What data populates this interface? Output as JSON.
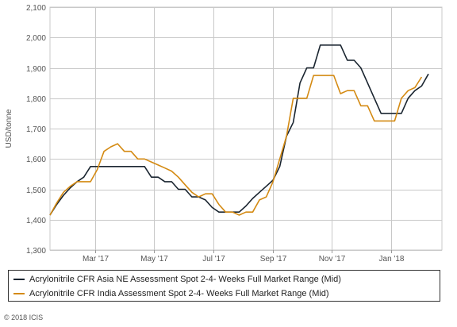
{
  "chart_data": {
    "type": "line",
    "title": "",
    "xlabel": "",
    "ylabel": "USD/tonne",
    "ylim": [
      1300,
      2100
    ],
    "yticks": [
      1300,
      1400,
      1500,
      1600,
      1700,
      1800,
      1900,
      2000,
      2100
    ],
    "ytick_labels": [
      "1,300",
      "1,400",
      "1,500",
      "1,600",
      "1,700",
      "1,800",
      "1,900",
      "2,000",
      "2,100"
    ],
    "xlim": [
      "2017-01-13",
      "2018-02-23"
    ],
    "xticks": [
      {
        "date": "2017-03-01",
        "label": "Mar '17"
      },
      {
        "date": "2017-05-01",
        "label": "May '17"
      },
      {
        "date": "2017-07-01",
        "label": "Jul '17"
      },
      {
        "date": "2017-09-01",
        "label": "Sep '17"
      },
      {
        "date": "2017-11-01",
        "label": "Nov '17"
      },
      {
        "date": "2018-01-01",
        "label": "Jan '18"
      }
    ],
    "grid": true,
    "legend_position": "bottom",
    "series": [
      {
        "name": "Acrylonitrile CFR Asia NE Assessment Spot 2-4- Weeks Full Market Range (Mid)",
        "color": "#1a2530",
        "points": [
          [
            "2017-01-13",
            1415
          ],
          [
            "2017-01-20",
            1450
          ],
          [
            "2017-01-27",
            1480
          ],
          [
            "2017-02-03",
            1505
          ],
          [
            "2017-02-10",
            1525
          ],
          [
            "2017-02-17",
            1540
          ],
          [
            "2017-02-24",
            1575
          ],
          [
            "2017-03-03",
            1575
          ],
          [
            "2017-03-10",
            1575
          ],
          [
            "2017-03-17",
            1575
          ],
          [
            "2017-03-24",
            1575
          ],
          [
            "2017-03-31",
            1575
          ],
          [
            "2017-04-07",
            1575
          ],
          [
            "2017-04-14",
            1575
          ],
          [
            "2017-04-21",
            1575
          ],
          [
            "2017-04-28",
            1540
          ],
          [
            "2017-05-05",
            1540
          ],
          [
            "2017-05-12",
            1525
          ],
          [
            "2017-05-19",
            1525
          ],
          [
            "2017-05-26",
            1500
          ],
          [
            "2017-06-02",
            1500
          ],
          [
            "2017-06-09",
            1475
          ],
          [
            "2017-06-16",
            1475
          ],
          [
            "2017-06-23",
            1465
          ],
          [
            "2017-06-30",
            1440
          ],
          [
            "2017-07-07",
            1425
          ],
          [
            "2017-07-14",
            1425
          ],
          [
            "2017-07-21",
            1425
          ],
          [
            "2017-07-28",
            1425
          ],
          [
            "2017-08-04",
            1445
          ],
          [
            "2017-08-11",
            1470
          ],
          [
            "2017-08-18",
            1490
          ],
          [
            "2017-08-25",
            1510
          ],
          [
            "2017-09-01",
            1530
          ],
          [
            "2017-09-08",
            1575
          ],
          [
            "2017-09-15",
            1675
          ],
          [
            "2017-09-22",
            1720
          ],
          [
            "2017-09-29",
            1850
          ],
          [
            "2017-10-06",
            1900
          ],
          [
            "2017-10-13",
            1900
          ],
          [
            "2017-10-20",
            1975
          ],
          [
            "2017-10-27",
            1975
          ],
          [
            "2017-11-03",
            1975
          ],
          [
            "2017-11-10",
            1975
          ],
          [
            "2017-11-17",
            1925
          ],
          [
            "2017-11-24",
            1925
          ],
          [
            "2017-12-01",
            1900
          ],
          [
            "2017-12-08",
            1850
          ],
          [
            "2017-12-15",
            1800
          ],
          [
            "2017-12-22",
            1750
          ],
          [
            "2017-12-29",
            1750
          ],
          [
            "2018-01-05",
            1750
          ],
          [
            "2018-01-12",
            1750
          ],
          [
            "2018-01-19",
            1800
          ],
          [
            "2018-01-26",
            1825
          ],
          [
            "2018-02-02",
            1840
          ],
          [
            "2018-02-09",
            1880
          ]
        ]
      },
      {
        "name": "Acrylonitrile CFR India Assessment Spot 2-4- Weeks Full Market Range (Mid)",
        "color": "#d48a12",
        "points": [
          [
            "2017-01-13",
            1415
          ],
          [
            "2017-01-20",
            1455
          ],
          [
            "2017-01-27",
            1490
          ],
          [
            "2017-02-03",
            1510
          ],
          [
            "2017-02-10",
            1525
          ],
          [
            "2017-02-17",
            1525
          ],
          [
            "2017-02-24",
            1525
          ],
          [
            "2017-03-03",
            1565
          ],
          [
            "2017-03-10",
            1625
          ],
          [
            "2017-03-17",
            1640
          ],
          [
            "2017-03-24",
            1650
          ],
          [
            "2017-03-31",
            1625
          ],
          [
            "2017-04-07",
            1625
          ],
          [
            "2017-04-14",
            1600
          ],
          [
            "2017-04-21",
            1600
          ],
          [
            "2017-04-28",
            1590
          ],
          [
            "2017-05-05",
            1580
          ],
          [
            "2017-05-12",
            1570
          ],
          [
            "2017-05-19",
            1560
          ],
          [
            "2017-05-26",
            1540
          ],
          [
            "2017-06-02",
            1515
          ],
          [
            "2017-06-09",
            1490
          ],
          [
            "2017-06-16",
            1475
          ],
          [
            "2017-06-23",
            1485
          ],
          [
            "2017-06-30",
            1485
          ],
          [
            "2017-07-07",
            1450
          ],
          [
            "2017-07-14",
            1425
          ],
          [
            "2017-07-21",
            1425
          ],
          [
            "2017-07-28",
            1415
          ],
          [
            "2017-08-04",
            1425
          ],
          [
            "2017-08-11",
            1425
          ],
          [
            "2017-08-18",
            1465
          ],
          [
            "2017-08-25",
            1475
          ],
          [
            "2017-09-01",
            1525
          ],
          [
            "2017-09-08",
            1600
          ],
          [
            "2017-09-15",
            1675
          ],
          [
            "2017-09-22",
            1800
          ],
          [
            "2017-09-29",
            1800
          ],
          [
            "2017-10-06",
            1800
          ],
          [
            "2017-10-13",
            1875
          ],
          [
            "2017-10-20",
            1875
          ],
          [
            "2017-10-27",
            1875
          ],
          [
            "2017-11-03",
            1875
          ],
          [
            "2017-11-10",
            1815
          ],
          [
            "2017-11-17",
            1825
          ],
          [
            "2017-11-24",
            1825
          ],
          [
            "2017-12-01",
            1775
          ],
          [
            "2017-12-08",
            1775
          ],
          [
            "2017-12-15",
            1725
          ],
          [
            "2017-12-22",
            1725
          ],
          [
            "2017-12-29",
            1725
          ],
          [
            "2018-01-05",
            1725
          ],
          [
            "2018-01-12",
            1800
          ],
          [
            "2018-01-19",
            1825
          ],
          [
            "2018-01-26",
            1835
          ],
          [
            "2018-02-02",
            1870
          ]
        ]
      }
    ]
  },
  "footer": {
    "copyright": "© 2018 ICIS"
  }
}
